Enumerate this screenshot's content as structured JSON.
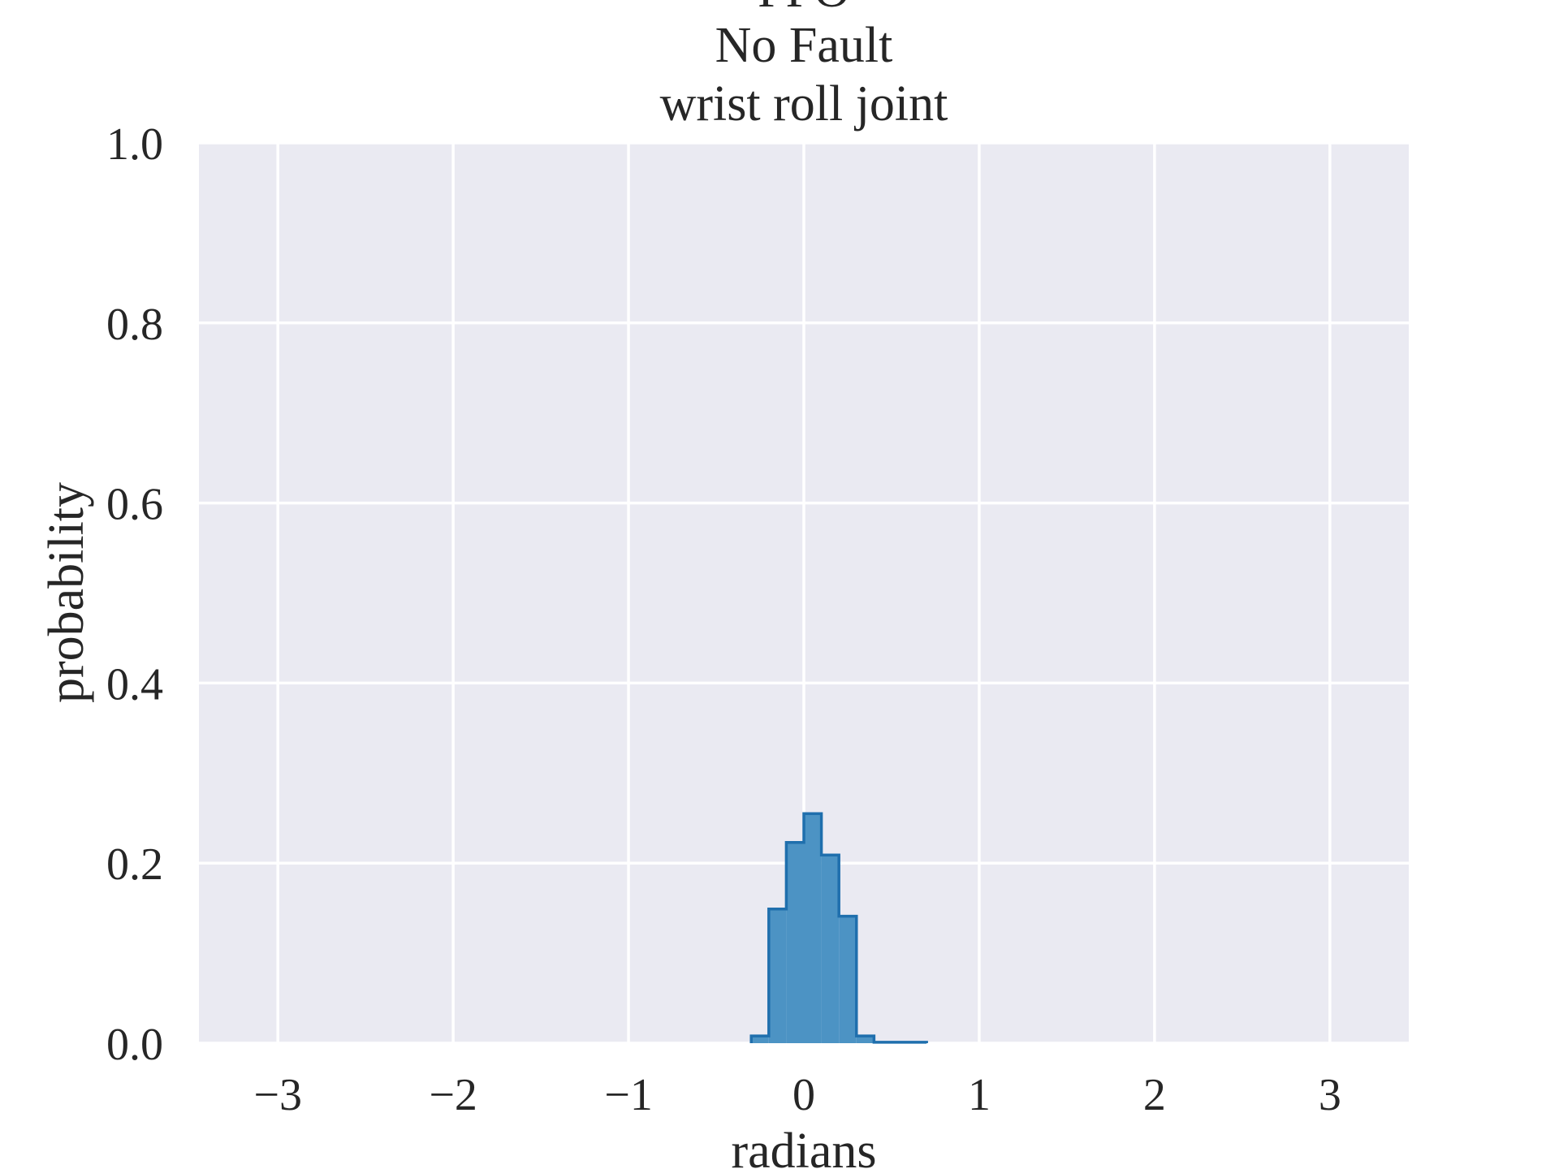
{
  "chart_data": {
    "type": "bar",
    "title_lines": [
      "PPO",
      "No Fault",
      "wrist roll joint"
    ],
    "xlabel": "radians",
    "ylabel": "probability",
    "xlim": [
      -3.45,
      3.45
    ],
    "ylim": [
      0.0,
      1.0
    ],
    "x_ticks": [
      -3,
      -2,
      -1,
      0,
      1,
      2,
      3
    ],
    "x_tick_labels": [
      "−3",
      "−2",
      "−1",
      "0",
      "1",
      "2",
      "3"
    ],
    "y_ticks": [
      0.0,
      0.2,
      0.4,
      0.6,
      0.8,
      1.0
    ],
    "y_tick_labels": [
      "0.0",
      "0.2",
      "0.4",
      "0.6",
      "0.8",
      "1.0"
    ],
    "grid": true,
    "bin_edges": [
      -0.3,
      -0.2,
      -0.1,
      0.0,
      0.1,
      0.2,
      0.3,
      0.4,
      0.5,
      0.6,
      0.7
    ],
    "values": [
      0.008,
      0.149,
      0.223,
      0.255,
      0.209,
      0.141,
      0.008,
      0.001,
      0.001,
      0.001
    ],
    "colors": {
      "background": "#eaeaf2",
      "grid": "#ffffff",
      "bar_fill": "#4c93c4",
      "bar_edge": "#1f6fad",
      "text": "#262626"
    }
  }
}
